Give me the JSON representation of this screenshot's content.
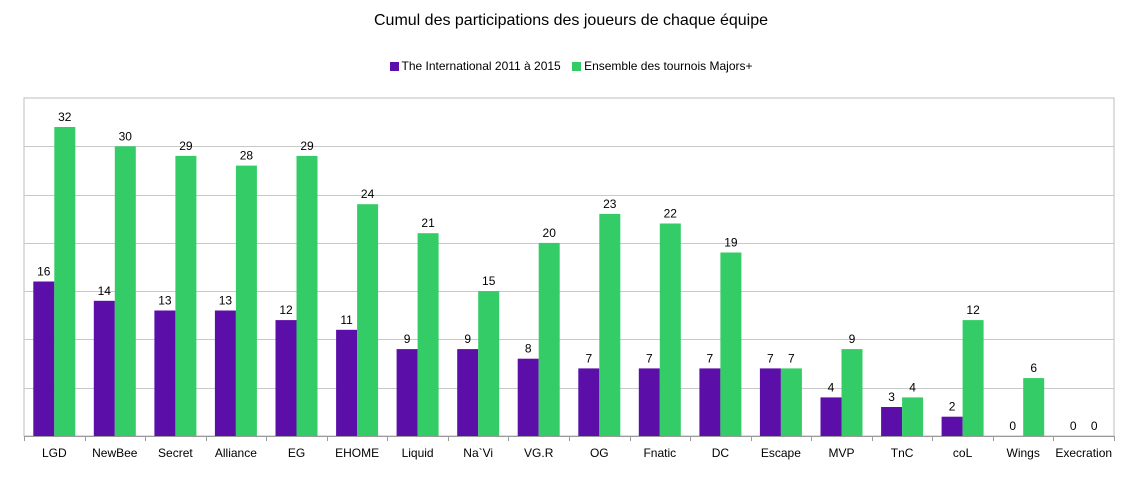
{
  "chart_data": {
    "type": "bar",
    "title": "Cumul des participations des joueurs de chaque équipe",
    "categories": [
      "LGD",
      "NewBee",
      "Secret",
      "Alliance",
      "EG",
      "EHOME",
      "Liquid",
      "Na`Vi",
      "VG.R",
      "OG",
      "Fnatic",
      "DC",
      "Escape",
      "MVP",
      "TnC",
      "coL",
      "Wings",
      "Execration"
    ],
    "series": [
      {
        "name": "The International 2011 à 2015",
        "color": "#5b0fa8",
        "values": [
          16,
          14,
          13,
          13,
          12,
          11,
          9,
          9,
          8,
          7,
          7,
          7,
          7,
          4,
          3,
          2,
          0,
          0
        ]
      },
      {
        "name": "Ensemble des tournois Majors+",
        "color": "#33cc66",
        "values": [
          32,
          30,
          29,
          28,
          29,
          24,
          21,
          15,
          20,
          23,
          22,
          19,
          7,
          9,
          4,
          12,
          6,
          0
        ]
      }
    ],
    "ylim": [
      0,
      35
    ],
    "grid": true,
    "data_labels": true,
    "legend_position": "top"
  }
}
